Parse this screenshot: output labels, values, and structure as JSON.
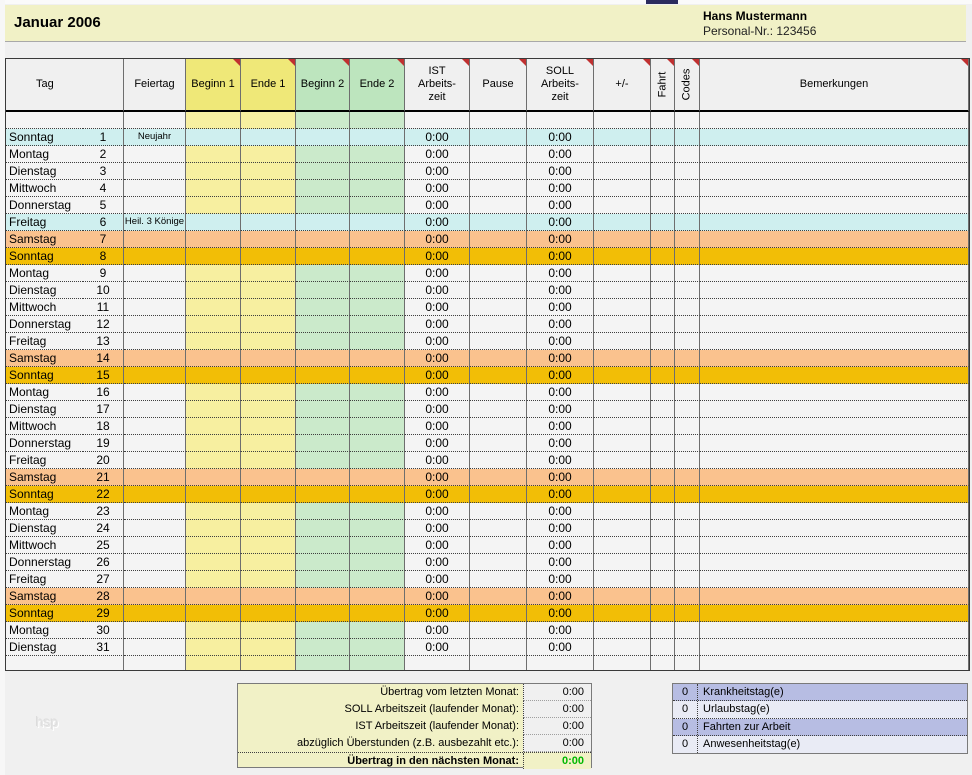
{
  "banner": {
    "month_title": "Januar 2006",
    "employee_name": "Hans Mustermann",
    "personal_nr": "Personal-Nr.: 123456"
  },
  "table": {
    "columns": [
      {
        "id": "tag",
        "label": "Tag"
      },
      {
        "id": "feiertag",
        "label": "Feiertag"
      },
      {
        "id": "beginn1",
        "label": "Beginn 1"
      },
      {
        "id": "ende1",
        "label": "Ende 1"
      },
      {
        "id": "beginn2",
        "label": "Beginn 2"
      },
      {
        "id": "ende2",
        "label": "Ende 2"
      },
      {
        "id": "ist",
        "label": "IST\nArbeits-\nzeit"
      },
      {
        "id": "pause",
        "label": "Pause"
      },
      {
        "id": "soll",
        "label": "SOLL\nArbeits-\nzeit"
      },
      {
        "id": "plusminus",
        "label": "+/-"
      },
      {
        "id": "fahrt",
        "label": "Fahrt"
      },
      {
        "id": "codes",
        "label": "Codes"
      },
      {
        "id": "bemerkungen",
        "label": "Bemerkungen"
      }
    ],
    "days": [
      {
        "name": "Sonntag",
        "num": 1,
        "holiday": "Neujahr",
        "type": "holiday"
      },
      {
        "name": "Montag",
        "num": 2,
        "holiday": "",
        "type": "work"
      },
      {
        "name": "Dienstag",
        "num": 3,
        "holiday": "",
        "type": "work"
      },
      {
        "name": "Mittwoch",
        "num": 4,
        "holiday": "",
        "type": "work"
      },
      {
        "name": "Donnerstag",
        "num": 5,
        "holiday": "",
        "type": "work"
      },
      {
        "name": "Freitag",
        "num": 6,
        "holiday": "Heil. 3 Könige",
        "type": "holiday"
      },
      {
        "name": "Samstag",
        "num": 7,
        "holiday": "",
        "type": "saturday"
      },
      {
        "name": "Sonntag",
        "num": 8,
        "holiday": "",
        "type": "sunday"
      },
      {
        "name": "Montag",
        "num": 9,
        "holiday": "",
        "type": "work"
      },
      {
        "name": "Dienstag",
        "num": 10,
        "holiday": "",
        "type": "work"
      },
      {
        "name": "Mittwoch",
        "num": 11,
        "holiday": "",
        "type": "work"
      },
      {
        "name": "Donnerstag",
        "num": 12,
        "holiday": "",
        "type": "work"
      },
      {
        "name": "Freitag",
        "num": 13,
        "holiday": "",
        "type": "work"
      },
      {
        "name": "Samstag",
        "num": 14,
        "holiday": "",
        "type": "saturday"
      },
      {
        "name": "Sonntag",
        "num": 15,
        "holiday": "",
        "type": "sunday"
      },
      {
        "name": "Montag",
        "num": 16,
        "holiday": "",
        "type": "work"
      },
      {
        "name": "Dienstag",
        "num": 17,
        "holiday": "",
        "type": "work"
      },
      {
        "name": "Mittwoch",
        "num": 18,
        "holiday": "",
        "type": "work"
      },
      {
        "name": "Donnerstag",
        "num": 19,
        "holiday": "",
        "type": "work"
      },
      {
        "name": "Freitag",
        "num": 20,
        "holiday": "",
        "type": "work"
      },
      {
        "name": "Samstag",
        "num": 21,
        "holiday": "",
        "type": "saturday"
      },
      {
        "name": "Sonntag",
        "num": 22,
        "holiday": "",
        "type": "sunday"
      },
      {
        "name": "Montag",
        "num": 23,
        "holiday": "",
        "type": "work"
      },
      {
        "name": "Dienstag",
        "num": 24,
        "holiday": "",
        "type": "work"
      },
      {
        "name": "Mittwoch",
        "num": 25,
        "holiday": "",
        "type": "work"
      },
      {
        "name": "Donnerstag",
        "num": 26,
        "holiday": "",
        "type": "work"
      },
      {
        "name": "Freitag",
        "num": 27,
        "holiday": "",
        "type": "work"
      },
      {
        "name": "Samstag",
        "num": 28,
        "holiday": "",
        "type": "saturday"
      },
      {
        "name": "Sonntag",
        "num": 29,
        "holiday": "",
        "type": "sunday"
      },
      {
        "name": "Montag",
        "num": 30,
        "holiday": "",
        "type": "work"
      },
      {
        "name": "Dienstag",
        "num": 31,
        "holiday": "",
        "type": "work"
      }
    ]
  },
  "defaults": {
    "time_value": "0:00"
  },
  "summary_left": {
    "rows": [
      {
        "label": "Übertrag vom letzten Monat:",
        "value": "0:00"
      },
      {
        "label": "SOLL Arbeitszeit (laufender Monat):",
        "value": "0:00"
      },
      {
        "label": "IST Arbeitszeit (laufender Monat):",
        "value": "0:00"
      },
      {
        "label": "abzüglich Überstunden (z.B. ausbezahlt etc.):",
        "value": "0:00"
      },
      {
        "label": "Übertrag in den nächsten Monat:",
        "value": "0:00"
      }
    ]
  },
  "summary_right": {
    "rows": [
      {
        "count": "0",
        "label": "Krankheitstag(e)"
      },
      {
        "count": "0",
        "label": "Urlaubstag(e)"
      },
      {
        "count": "0",
        "label": "Fahrten zur Arbeit"
      },
      {
        "count": "0",
        "label": "Anwesenheitstag(e)"
      }
    ]
  },
  "watermark": "hsp",
  "colors": {
    "banner_bg": "#F1F1C6",
    "header_cell_bg": "#F0F0F0",
    "header_yellow": "#EFE878",
    "header_green": "#BDE5BE",
    "yellow_col": "#F7EFA0",
    "green_col": "#CBEACB",
    "holiday_row": "#CFEFEF",
    "saturday_row": "#FAC28E",
    "sunday_row": "#F2BE06",
    "work_row": "#F4F4F4",
    "comment_red": "#C03030",
    "carry_green": "#00B800",
    "lavender_dark": "#B7BDE3",
    "lavender_light": "#E9EBF5",
    "summary_value_bg": "#F0F0F0"
  }
}
